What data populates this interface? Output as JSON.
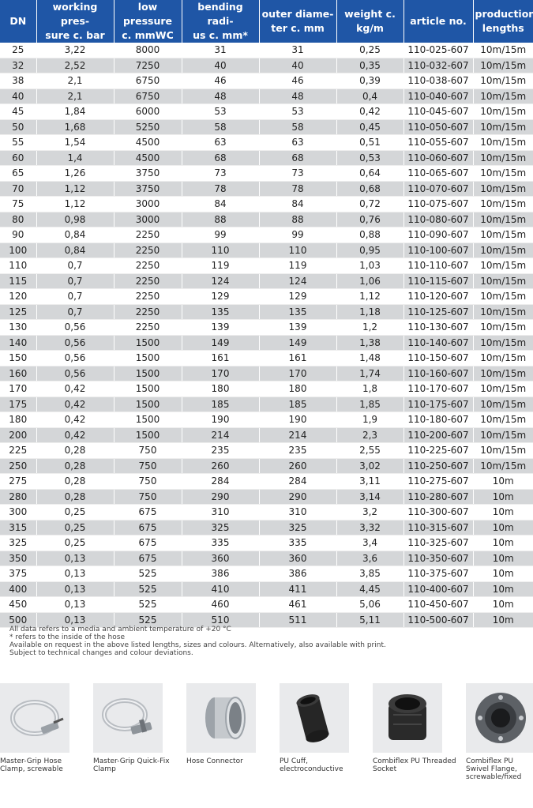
{
  "table": {
    "headers": [
      "DN",
      "working pres-\nsure c. bar",
      "low pressure\nc. mmWC",
      "bending radi-\nus c. mm*",
      "outer diame-\nter c. mm",
      "weight c.\nkg/m",
      "article no.",
      "production\nlengths"
    ],
    "rows": [
      [
        "25",
        "3,22",
        "8000",
        "31",
        "31",
        "0,25",
        "110-025-607",
        "10m/15m"
      ],
      [
        "32",
        "2,52",
        "7250",
        "40",
        "40",
        "0,35",
        "110-032-607",
        "10m/15m"
      ],
      [
        "38",
        "2,1",
        "6750",
        "46",
        "46",
        "0,39",
        "110-038-607",
        "10m/15m"
      ],
      [
        "40",
        "2,1",
        "6750",
        "48",
        "48",
        "0,4",
        "110-040-607",
        "10m/15m"
      ],
      [
        "45",
        "1,84",
        "6000",
        "53",
        "53",
        "0,42",
        "110-045-607",
        "10m/15m"
      ],
      [
        "50",
        "1,68",
        "5250",
        "58",
        "58",
        "0,45",
        "110-050-607",
        "10m/15m"
      ],
      [
        "55",
        "1,54",
        "4500",
        "63",
        "63",
        "0,51",
        "110-055-607",
        "10m/15m"
      ],
      [
        "60",
        "1,4",
        "4500",
        "68",
        "68",
        "0,53",
        "110-060-607",
        "10m/15m"
      ],
      [
        "65",
        "1,26",
        "3750",
        "73",
        "73",
        "0,64",
        "110-065-607",
        "10m/15m"
      ],
      [
        "70",
        "1,12",
        "3750",
        "78",
        "78",
        "0,68",
        "110-070-607",
        "10m/15m"
      ],
      [
        "75",
        "1,12",
        "3000",
        "84",
        "84",
        "0,72",
        "110-075-607",
        "10m/15m"
      ],
      [
        "80",
        "0,98",
        "3000",
        "88",
        "88",
        "0,76",
        "110-080-607",
        "10m/15m"
      ],
      [
        "90",
        "0,84",
        "2250",
        "99",
        "99",
        "0,88",
        "110-090-607",
        "10m/15m"
      ],
      [
        "100",
        "0,84",
        "2250",
        "110",
        "110",
        "0,95",
        "110-100-607",
        "10m/15m"
      ],
      [
        "110",
        "0,7",
        "2250",
        "119",
        "119",
        "1,03",
        "110-110-607",
        "10m/15m"
      ],
      [
        "115",
        "0,7",
        "2250",
        "124",
        "124",
        "1,06",
        "110-115-607",
        "10m/15m"
      ],
      [
        "120",
        "0,7",
        "2250",
        "129",
        "129",
        "1,12",
        "110-120-607",
        "10m/15m"
      ],
      [
        "125",
        "0,7",
        "2250",
        "135",
        "135",
        "1,18",
        "110-125-607",
        "10m/15m"
      ],
      [
        "130",
        "0,56",
        "2250",
        "139",
        "139",
        "1,2",
        "110-130-607",
        "10m/15m"
      ],
      [
        "140",
        "0,56",
        "1500",
        "149",
        "149",
        "1,38",
        "110-140-607",
        "10m/15m"
      ],
      [
        "150",
        "0,56",
        "1500",
        "161",
        "161",
        "1,48",
        "110-150-607",
        "10m/15m"
      ],
      [
        "160",
        "0,56",
        "1500",
        "170",
        "170",
        "1,74",
        "110-160-607",
        "10m/15m"
      ],
      [
        "170",
        "0,42",
        "1500",
        "180",
        "180",
        "1,8",
        "110-170-607",
        "10m/15m"
      ],
      [
        "175",
        "0,42",
        "1500",
        "185",
        "185",
        "1,85",
        "110-175-607",
        "10m/15m"
      ],
      [
        "180",
        "0,42",
        "1500",
        "190",
        "190",
        "1,9",
        "110-180-607",
        "10m/15m"
      ],
      [
        "200",
        "0,42",
        "1500",
        "214",
        "214",
        "2,3",
        "110-200-607",
        "10m/15m"
      ],
      [
        "225",
        "0,28",
        "750",
        "235",
        "235",
        "2,55",
        "110-225-607",
        "10m/15m"
      ],
      [
        "250",
        "0,28",
        "750",
        "260",
        "260",
        "3,02",
        "110-250-607",
        "10m/15m"
      ],
      [
        "275",
        "0,28",
        "750",
        "284",
        "284",
        "3,11",
        "110-275-607",
        "10m"
      ],
      [
        "280",
        "0,28",
        "750",
        "290",
        "290",
        "3,14",
        "110-280-607",
        "10m"
      ],
      [
        "300",
        "0,25",
        "675",
        "310",
        "310",
        "3,2",
        "110-300-607",
        "10m"
      ],
      [
        "315",
        "0,25",
        "675",
        "325",
        "325",
        "3,32",
        "110-315-607",
        "10m"
      ],
      [
        "325",
        "0,25",
        "675",
        "335",
        "335",
        "3,4",
        "110-325-607",
        "10m"
      ],
      [
        "350",
        "0,13",
        "675",
        "360",
        "360",
        "3,6",
        "110-350-607",
        "10m"
      ],
      [
        "375",
        "0,13",
        "525",
        "386",
        "386",
        "3,85",
        "110-375-607",
        "10m"
      ],
      [
        "400",
        "0,13",
        "525",
        "410",
        "411",
        "4,45",
        "110-400-607",
        "10m"
      ],
      [
        "450",
        "0,13",
        "525",
        "460",
        "461",
        "5,06",
        "110-450-607",
        "10m"
      ],
      [
        "500",
        "0,13",
        "525",
        "510",
        "511",
        "5,11",
        "110-500-607",
        "10m"
      ]
    ]
  },
  "notes": [
    "All data refers to a media and ambient temperature of +20 °C",
    "* refers to the inside of the hose",
    "Available on request in the above listed lengths, sizes and colours. Alternatively, also available with print.",
    "Subject to technical changes and colour deviations."
  ],
  "accessories": [
    {
      "caption": "Master-Grip Hose Clamp, screwable",
      "icon": "hose-clamp-icon"
    },
    {
      "caption": "Master-Grip Quick-Fix Clamp",
      "icon": "quick-fix-clamp-icon"
    },
    {
      "caption": "Hose Connector",
      "icon": "hose-connector-icon"
    },
    {
      "caption": "PU Cuff, electroconductive",
      "icon": "pu-cuff-icon"
    },
    {
      "caption": "Combiflex PU Threaded Socket",
      "icon": "threaded-socket-icon"
    },
    {
      "caption": "Combiflex PU Swivel Flange, screwable/fixed",
      "icon": "swivel-flange-icon"
    }
  ],
  "colors": {
    "header_bg": "#1f56a6",
    "row_alt_bg": "#d4d6d8"
  }
}
